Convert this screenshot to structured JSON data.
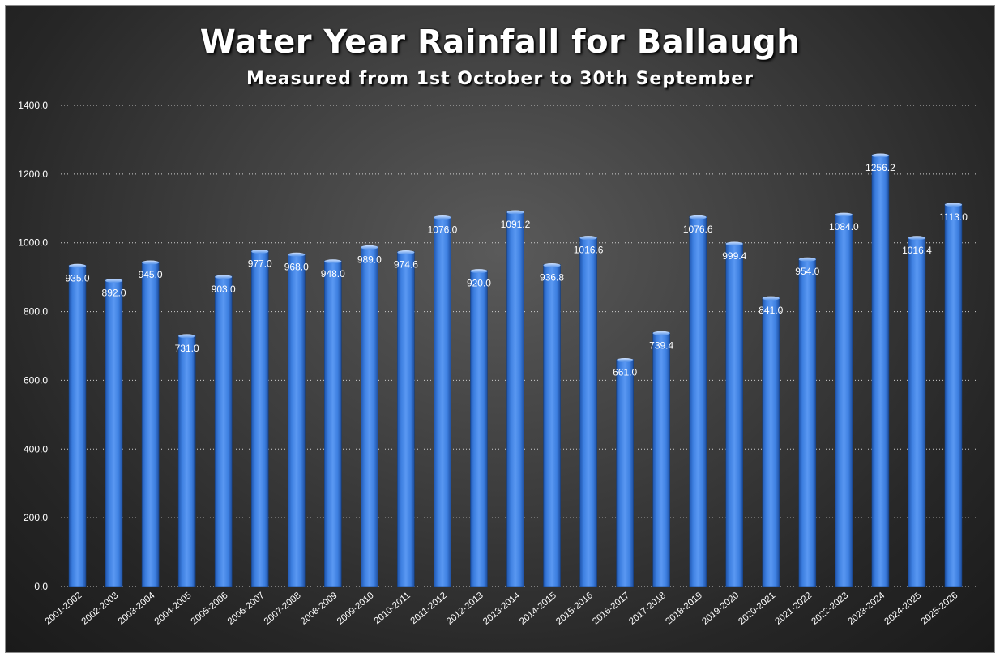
{
  "chart_data": {
    "type": "bar",
    "title": "Water Year Rainfall for Ballaugh",
    "subtitle": "Measured from 1st October to 30th September",
    "xlabel": "",
    "ylabel": "",
    "ylim": [
      0,
      1400
    ],
    "yticks": [
      "0.0",
      "200.0",
      "400.0",
      "600.0",
      "800.0",
      "1000.0",
      "1200.0",
      "1400.0"
    ],
    "grid": true,
    "legend": "none",
    "bar_color": "#3d7fe0",
    "categories": [
      "2001-2002",
      "2002-2003",
      "2003-2004",
      "2004-2005",
      "2005-2006",
      "2006-2007",
      "2007-2008",
      "2008-2009",
      "2009-2010",
      "2010-2011",
      "2011-2012",
      "2012-2013",
      "2013-2014",
      "2014-2015",
      "2015-2016",
      "2016-2017",
      "2017-2018",
      "2018-2019",
      "2019-2020",
      "2020-2021",
      "2021-2022",
      "2022-2023",
      "2023-2024",
      "2024-2025",
      "2025-2026"
    ],
    "values": [
      935.0,
      892.0,
      945.0,
      731.0,
      903.0,
      977.0,
      968.0,
      948.0,
      989.0,
      974.6,
      1076.0,
      920.0,
      1091.2,
      936.8,
      1016.6,
      661.0,
      739.4,
      1076.6,
      999.4,
      841.0,
      954.0,
      1084.0,
      1256.2,
      1016.4,
      1113.0
    ],
    "value_labels": [
      "935.0",
      "892.0",
      "945.0",
      "731.0",
      "903.0",
      "977.0",
      "968.0",
      "948.0",
      "989.0",
      "974.6",
      "1076.0",
      "920.0",
      "1091.2",
      "936.8",
      "1016.6",
      "661.0",
      "739.4",
      "1076.6",
      "999.4",
      "841.0",
      "954.0",
      "1084.0",
      "1256.2",
      "1016.4",
      "1113.0"
    ]
  }
}
